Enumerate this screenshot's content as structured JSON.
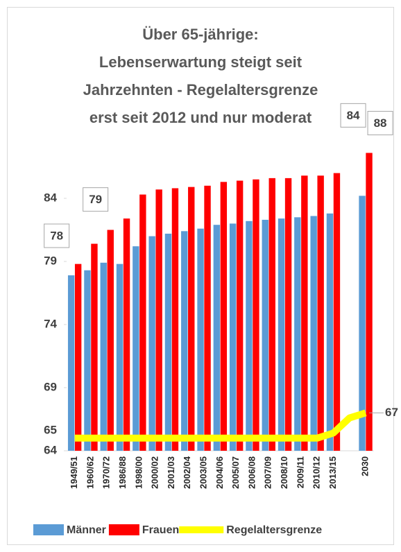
{
  "chart_data": {
    "type": "bar",
    "title": [
      "Über 65-jährige:",
      "Lebenserwartung steigt seit",
      "Jahrzehnten -  Regelaltersgrenze",
      "erst seit 2012 und nur moderat"
    ],
    "categories": [
      "1949/51",
      "1960/62",
      "1970/72",
      "1986/88",
      "1998/00",
      "2000/02",
      "2001/03",
      "2002/04",
      "2003/05",
      "2004/06",
      "2005/07",
      "2006/08",
      "2007/09",
      "2008/10",
      "2009/11",
      "2010/12",
      "2013/15",
      null,
      "2030"
    ],
    "series": [
      {
        "name": "Männer",
        "color": "#5b9bd5",
        "type": "bar",
        "values": [
          77.9,
          78.3,
          78.9,
          78.8,
          80.2,
          81.0,
          81.2,
          81.4,
          81.6,
          81.9,
          82.0,
          82.2,
          82.3,
          82.4,
          82.5,
          82.6,
          82.8,
          null,
          84.2
        ],
        "value_labels": [
          "78",
          null,
          null,
          null,
          null,
          null,
          null,
          null,
          null,
          null,
          null,
          null,
          null,
          null,
          null,
          null,
          null,
          null,
          "84"
        ]
      },
      {
        "name": "Frauen",
        "color": "#ff0000",
        "type": "bar",
        "values": [
          78.8,
          80.4,
          81.5,
          82.4,
          84.3,
          84.7,
          84.8,
          84.9,
          85.0,
          85.3,
          85.4,
          85.5,
          85.6,
          85.6,
          85.8,
          85.8,
          86.0,
          null,
          87.6
        ],
        "value_labels": [
          "79",
          null,
          null,
          null,
          null,
          null,
          null,
          null,
          null,
          null,
          null,
          null,
          null,
          null,
          null,
          null,
          null,
          null,
          "88"
        ]
      },
      {
        "name": "Regelaltersgrenze",
        "color": "#ffff00",
        "type": "line",
        "values": [
          65,
          65,
          65,
          65,
          65,
          65,
          65,
          65,
          65,
          65,
          65,
          65,
          65,
          65,
          65,
          65,
          65.4,
          66.6,
          67
        ],
        "value_labels": [
          "65",
          null,
          null,
          null,
          null,
          null,
          null,
          null,
          null,
          null,
          null,
          null,
          null,
          null,
          null,
          null,
          null,
          null,
          "67"
        ]
      }
    ],
    "ylim": [
      64,
      89
    ],
    "yticks": [
      64,
      69,
      74,
      79,
      84
    ],
    "legend": "bottom"
  }
}
